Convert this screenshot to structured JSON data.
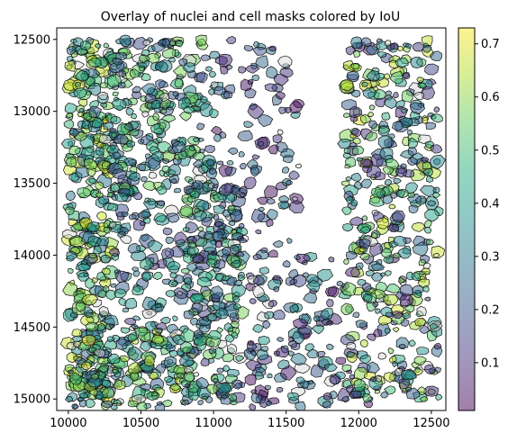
{
  "chart_data": {
    "type": "scatter",
    "title": "Overlay of nuclei and cell masks colored by IoU",
    "xlabel": "",
    "ylabel": "",
    "xlim": [
      9920,
      12600
    ],
    "ylim": [
      15080,
      12420
    ],
    "y_inverted": true,
    "x_ticks": [
      10000,
      10500,
      11000,
      11500,
      12000,
      12500
    ],
    "x_tick_labels": [
      "10000",
      "10500",
      "11000",
      "11500",
      "12000",
      "12500"
    ],
    "y_ticks": [
      12500,
      13000,
      13500,
      14000,
      14500,
      15000
    ],
    "y_tick_labels": [
      "12500",
      "13000",
      "13500",
      "14000",
      "14500",
      "15000"
    ],
    "grid": false,
    "legend": "none",
    "colormap": "viridis",
    "alpha": 0.5,
    "unmatched_color": "#d9d9d9",
    "colorbar": {
      "min": 0.01,
      "max": 0.73,
      "ticks": [
        0.1,
        0.2,
        0.3,
        0.4,
        0.5,
        0.6,
        0.7
      ],
      "tick_labels": [
        "0.1",
        "0.2",
        "0.3",
        "0.4",
        "0.5",
        "0.6",
        "0.7"
      ],
      "placement": "right"
    },
    "regions": [
      {
        "x": [
          10000,
          10300
        ],
        "y": [
          12500,
          15060
        ],
        "density": 1.6,
        "iou": [
          0.2,
          0.7
        ]
      },
      {
        "x": [
          10050,
          10900
        ],
        "y": [
          14500,
          15060
        ],
        "density": 1.5,
        "iou": [
          0.2,
          0.72
        ]
      },
      {
        "x": [
          10300,
          11000
        ],
        "y": [
          12500,
          13600
        ],
        "density": 1.3,
        "iou": [
          0.15,
          0.6
        ]
      },
      {
        "x": [
          10800,
          11200
        ],
        "y": [
          13500,
          15060
        ],
        "density": 1.4,
        "iou": [
          0.1,
          0.6
        ]
      },
      {
        "x": [
          11000,
          11600
        ],
        "y": [
          12500,
          14000
        ],
        "density": 0.45,
        "iou": [
          0.02,
          0.35
        ]
      },
      {
        "x": [
          11250,
          11900
        ],
        "y": [
          14000,
          15060
        ],
        "density": 0.7,
        "iou": [
          0.02,
          0.4
        ]
      },
      {
        "x": [
          11900,
          12550
        ],
        "y": [
          12500,
          15060
        ],
        "density": 1.0,
        "iou": [
          0.05,
          0.7
        ]
      },
      {
        "x": [
          10300,
          10800
        ],
        "y": [
          13600,
          14500
        ],
        "density": 0.8,
        "iou": [
          0.1,
          0.5
        ]
      }
    ]
  }
}
